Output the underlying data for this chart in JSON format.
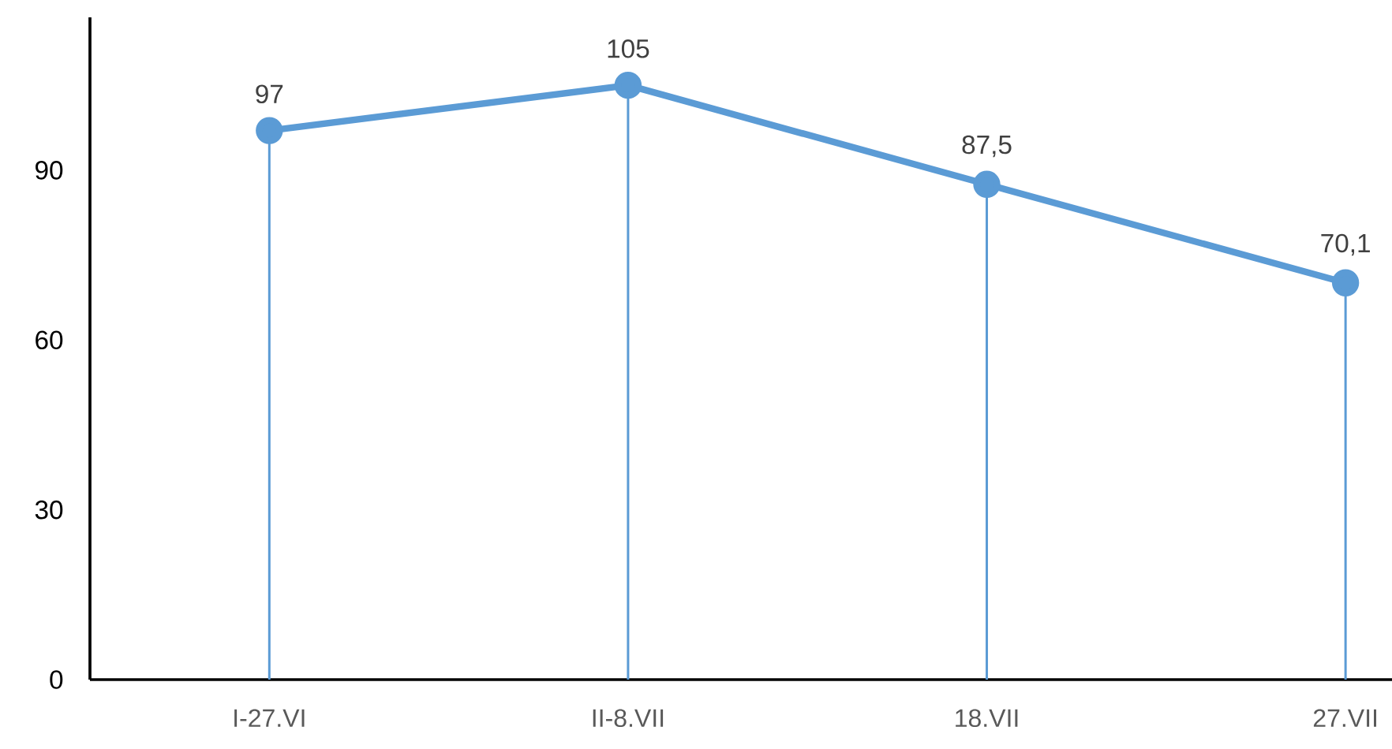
{
  "chart_data": {
    "type": "line",
    "categories": [
      "I-27.VI",
      "II-8.VII",
      "18.VII",
      "27.VII"
    ],
    "values": [
      97,
      105,
      87.5,
      70.1
    ],
    "value_labels": [
      "97",
      "105",
      "87,5",
      "70,1"
    ],
    "color": "#5b9bd5",
    "marker": "circle",
    "ylim": [
      0,
      117
    ],
    "yticks": [
      0,
      30,
      60,
      90
    ],
    "grid": "x"
  }
}
